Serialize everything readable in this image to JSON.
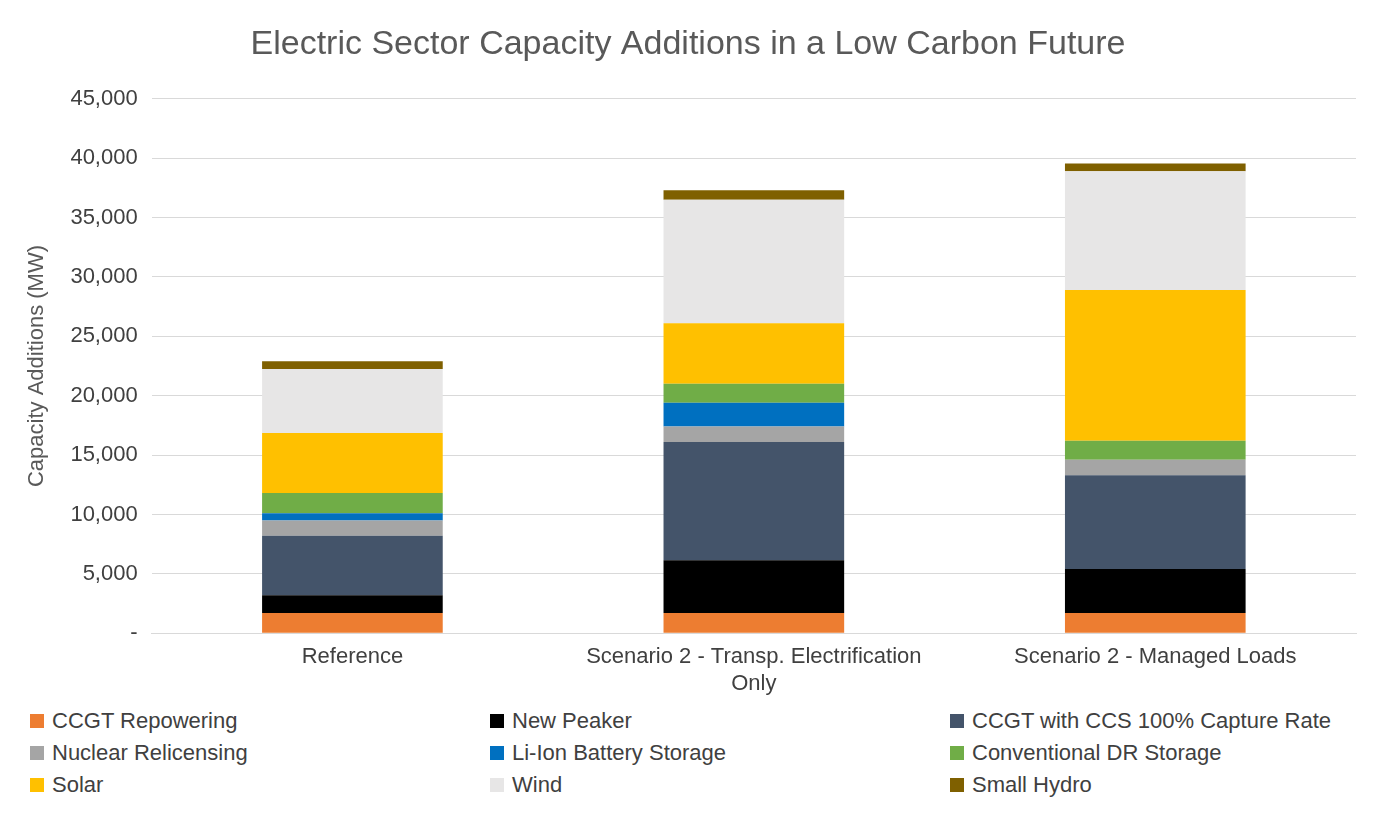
{
  "chart_data": {
    "type": "bar",
    "title": "Electric Sector Capacity Additions in a Low Carbon Future",
    "y_label": "Capacity Additions (MW)",
    "categories": [
      "Reference",
      "Scenario 2 - Transp. Electrification Only",
      "Scenario 2 - Managed Loads"
    ],
    "stacked": true,
    "grid": true,
    "legend": "bottom",
    "data_labels": false,
    "ylim": [
      0,
      45000
    ],
    "yticks": [
      {
        "value": 0,
        "label": "-"
      },
      {
        "value": 5000,
        "label": "5,000"
      },
      {
        "value": 10000,
        "label": "10,000"
      },
      {
        "value": 15000,
        "label": "15,000"
      },
      {
        "value": 20000,
        "label": "20,000"
      },
      {
        "value": 25000,
        "label": "25,000"
      },
      {
        "value": 30000,
        "label": "30,000"
      },
      {
        "value": 35000,
        "label": "35,000"
      },
      {
        "value": 40000,
        "label": "40,000"
      },
      {
        "value": 45000,
        "label": "45,000"
      }
    ],
    "series": [
      {
        "name": "CCGT Repowering",
        "color": "#ED7D31",
        "values": [
          1700,
          1700,
          1700
        ]
      },
      {
        "name": "New Peaker",
        "color": "#000000",
        "values": [
          1500,
          4450,
          3700
        ]
      },
      {
        "name": "CCGT with CCS 100% Capture Rate",
        "color": "#44546A",
        "values": [
          5000,
          9950,
          7900
        ]
      },
      {
        "name": "Nuclear Relicensing",
        "color": "#A5A5A5",
        "values": [
          1300,
          1300,
          1300
        ]
      },
      {
        "name": "Li-Ion Battery Storage",
        "color": "#0070C0",
        "values": [
          600,
          2000,
          0
        ]
      },
      {
        "name": "Conventional DR Storage",
        "color": "#70AD47",
        "values": [
          1700,
          1600,
          1600
        ]
      },
      {
        "name": "Solar",
        "color": "#FFC000",
        "values": [
          5050,
          5100,
          12700
        ]
      },
      {
        "name": "Wind",
        "color": "#E7E6E6",
        "values": [
          5400,
          10400,
          10000
        ]
      },
      {
        "name": "Small Hydro",
        "color": "#7F6000",
        "values": [
          650,
          800,
          650
        ]
      }
    ]
  }
}
